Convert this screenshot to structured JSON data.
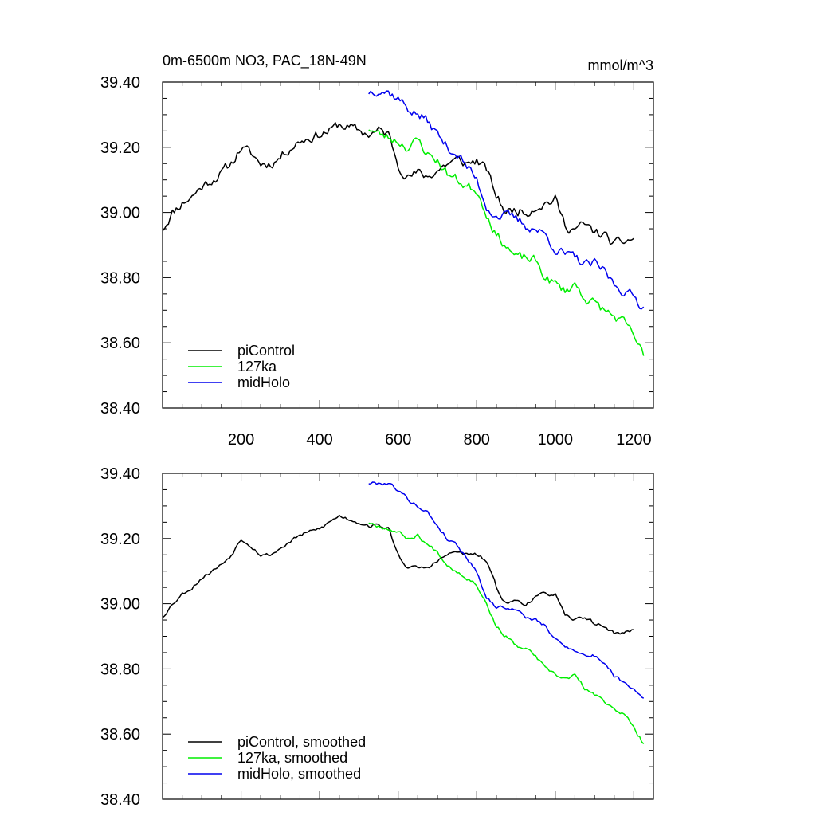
{
  "figure": {
    "title": "0m-6500m NO3, PAC_18N-49N",
    "units": "mmol/m^3"
  },
  "chart_data": [
    {
      "type": "line",
      "title": "0m-6500m NO3, PAC_18N-49N",
      "ylabel": "mmol/m^3",
      "xlim": [
        0,
        1250
      ],
      "ylim": [
        38.4,
        39.4
      ],
      "xticks": [
        200,
        400,
        600,
        800,
        1000,
        1200
      ],
      "xtick_labels": [
        "200",
        "400",
        "600",
        "800",
        "1000",
        "1200"
      ],
      "yticks": [
        38.4,
        38.6,
        38.8,
        39.0,
        39.2,
        39.4
      ],
      "ytick_labels": [
        "38.40",
        "38.60",
        "38.80",
        "39.00",
        "39.20",
        "39.40"
      ],
      "legend_position": "bottom-left",
      "series": [
        {
          "name": "piControl",
          "color": "#000000",
          "x": [
            0,
            25,
            50,
            75,
            100,
            125,
            150,
            175,
            200,
            225,
            250,
            275,
            300,
            325,
            350,
            375,
            400,
            425,
            450,
            475,
            500,
            525,
            550,
            575,
            600,
            625,
            650,
            675,
            700,
            725,
            750,
            775,
            800,
            825,
            850,
            875,
            900,
            925,
            950,
            975,
            1000,
            1025,
            1050,
            1075,
            1100,
            1125,
            1150,
            1175,
            1200
          ],
          "y": [
            38.95,
            39.0,
            39.03,
            39.05,
            39.08,
            39.1,
            39.12,
            39.15,
            39.2,
            39.18,
            39.15,
            39.15,
            39.17,
            39.2,
            39.22,
            39.23,
            39.24,
            39.25,
            39.27,
            39.26,
            39.25,
            39.24,
            39.25,
            39.24,
            39.15,
            39.11,
            39.12,
            39.11,
            39.13,
            39.15,
            39.16,
            39.15,
            39.16,
            39.13,
            39.05,
            39.0,
            39.01,
            39.0,
            39.02,
            39.03,
            39.04,
            38.96,
            38.95,
            38.96,
            38.94,
            38.93,
            38.9,
            38.91,
            38.92
          ],
          "noise": 0.013,
          "seed": 11
        },
        {
          "name": "127ka",
          "color": "#00ee00",
          "x": [
            525,
            550,
            575,
            600,
            625,
            650,
            675,
            700,
            725,
            750,
            775,
            800,
            825,
            850,
            875,
            900,
            925,
            950,
            975,
            1000,
            1025,
            1050,
            1075,
            1100,
            1125,
            1150,
            1175,
            1200,
            1225
          ],
          "y": [
            39.26,
            39.24,
            39.23,
            39.22,
            39.2,
            39.22,
            39.18,
            39.16,
            39.12,
            39.1,
            39.08,
            39.07,
            39.0,
            38.93,
            38.9,
            38.86,
            38.86,
            38.85,
            38.8,
            38.78,
            38.76,
            38.78,
            38.74,
            38.72,
            38.7,
            38.68,
            38.66,
            38.62,
            38.56
          ],
          "noise": 0.013,
          "seed": 23
        },
        {
          "name": "midHolo",
          "color": "#0000ee",
          "x": [
            525,
            550,
            575,
            600,
            625,
            650,
            675,
            700,
            725,
            750,
            775,
            800,
            825,
            850,
            875,
            900,
            925,
            950,
            975,
            1000,
            1025,
            1050,
            1075,
            1100,
            1125,
            1150,
            1175,
            1200,
            1225
          ],
          "y": [
            39.37,
            39.38,
            39.37,
            39.35,
            39.32,
            39.3,
            39.28,
            39.24,
            39.2,
            39.18,
            39.14,
            39.1,
            39.02,
            38.99,
            38.99,
            38.98,
            38.96,
            38.95,
            38.93,
            38.89,
            38.87,
            38.86,
            38.84,
            38.84,
            38.82,
            38.78,
            38.76,
            38.74,
            38.71
          ],
          "noise": 0.013,
          "seed": 37
        }
      ]
    },
    {
      "type": "line",
      "title": "",
      "ylabel": "",
      "xlim": [
        0,
        1250
      ],
      "ylim": [
        38.4,
        39.4
      ],
      "xticks": [
        200,
        400,
        600,
        800,
        1000,
        1200
      ],
      "xtick_labels": [],
      "yticks": [
        38.4,
        38.6,
        38.8,
        39.0,
        39.2,
        39.4
      ],
      "ytick_labels": [
        "38.40",
        "38.60",
        "38.80",
        "39.00",
        "39.20",
        "39.40"
      ],
      "legend_position": "bottom-left",
      "series": [
        {
          "name": "piControl, smoothed",
          "color": "#000000",
          "x": [
            0,
            25,
            50,
            75,
            100,
            125,
            150,
            175,
            200,
            225,
            250,
            275,
            300,
            325,
            350,
            375,
            400,
            425,
            450,
            475,
            500,
            525,
            550,
            575,
            600,
            625,
            650,
            675,
            700,
            725,
            750,
            775,
            800,
            825,
            850,
            875,
            900,
            925,
            950,
            975,
            1000,
            1025,
            1050,
            1075,
            1100,
            1125,
            1150,
            1175,
            1200
          ],
          "y": [
            38.96,
            39.0,
            39.03,
            39.05,
            39.08,
            39.1,
            39.12,
            39.15,
            39.2,
            39.18,
            39.15,
            39.15,
            39.17,
            39.19,
            39.21,
            39.22,
            39.23,
            39.25,
            39.27,
            39.26,
            39.25,
            39.24,
            39.24,
            39.23,
            39.15,
            39.11,
            39.11,
            39.11,
            39.13,
            39.15,
            39.16,
            39.15,
            39.15,
            39.13,
            39.05,
            39.0,
            39.01,
            39.0,
            39.02,
            39.03,
            39.03,
            38.96,
            38.95,
            38.96,
            38.94,
            38.93,
            38.91,
            38.91,
            38.92
          ],
          "noise": 0.005,
          "seed": 53
        },
        {
          "name": "127ka, smoothed",
          "color": "#00ee00",
          "x": [
            525,
            550,
            575,
            600,
            625,
            650,
            675,
            700,
            725,
            750,
            775,
            800,
            825,
            850,
            875,
            900,
            925,
            950,
            975,
            1000,
            1025,
            1050,
            1075,
            1100,
            1125,
            1150,
            1175,
            1200,
            1225
          ],
          "y": [
            39.25,
            39.24,
            39.23,
            39.22,
            39.2,
            39.21,
            39.18,
            39.16,
            39.12,
            39.1,
            39.08,
            39.06,
            39.0,
            38.93,
            38.9,
            38.87,
            38.86,
            38.84,
            38.8,
            38.78,
            38.77,
            38.78,
            38.74,
            38.72,
            38.7,
            38.68,
            38.66,
            38.62,
            38.57
          ],
          "noise": 0.005,
          "seed": 67
        },
        {
          "name": "midHolo, smoothed",
          "color": "#0000ee",
          "x": [
            525,
            550,
            575,
            600,
            625,
            650,
            675,
            700,
            725,
            750,
            775,
            800,
            825,
            850,
            875,
            900,
            925,
            950,
            975,
            1000,
            1025,
            1050,
            1075,
            1100,
            1125,
            1150,
            1175,
            1200,
            1225
          ],
          "y": [
            39.37,
            39.37,
            39.37,
            39.35,
            39.32,
            39.3,
            39.28,
            39.24,
            39.2,
            39.18,
            39.14,
            39.1,
            39.02,
            38.99,
            38.99,
            38.98,
            38.96,
            38.95,
            38.93,
            38.89,
            38.87,
            38.86,
            38.84,
            38.84,
            38.82,
            38.78,
            38.76,
            38.74,
            38.71
          ],
          "noise": 0.005,
          "seed": 79
        }
      ]
    }
  ]
}
